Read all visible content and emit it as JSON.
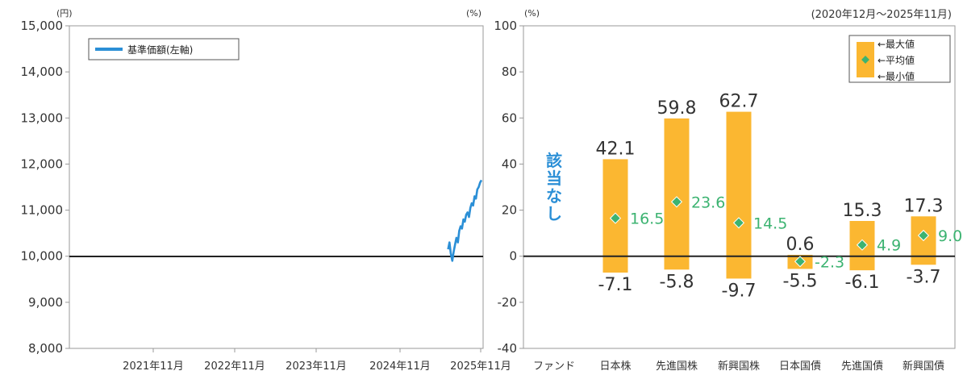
{
  "chart_data": [
    {
      "type": "line",
      "y_unit": "(円)",
      "y_ticks": [
        8000,
        9000,
        10000,
        11000,
        12000,
        13000,
        14000,
        15000
      ],
      "y_tick_labels": [
        "8,000",
        "9,000",
        "10,000",
        "11,000",
        "12,000",
        "13,000",
        "14,000",
        "15,000"
      ],
      "ylim": [
        8000,
        15000
      ],
      "x_tick_labels": [
        "2021年11月",
        "2022年11月",
        "2023年11月",
        "2024年11月",
        "2025年11月"
      ],
      "legend": "基準価額(左軸)",
      "legend_position": "top-left",
      "series_color": "#2b8fd6",
      "series": [
        {
          "values_note_x": "months from 2020-12 (index 0) to 2025-11 (index 59)",
          "x": [
            54.2,
            54.4,
            54.6,
            54.8,
            55.0,
            55.2,
            55.4,
            55.6,
            55.8,
            56.0,
            56.2,
            56.4,
            56.6,
            56.8,
            57.0,
            57.2,
            57.4,
            57.6,
            57.8,
            58.0,
            58.2,
            58.4,
            58.6,
            58.8,
            59.0
          ],
          "y": [
            10150,
            10300,
            10050,
            9900,
            10100,
            10250,
            10400,
            10300,
            10550,
            10650,
            10600,
            10800,
            10750,
            10900,
            10950,
            10850,
            11050,
            11150,
            11100,
            11300,
            11250,
            11450,
            11500,
            11600,
            11650
          ]
        }
      ]
    },
    {
      "type": "bar",
      "period": "(2020年12月～2025年11月)",
      "y_unit": "(%)",
      "y_ticks": [
        -40,
        -20,
        0,
        20,
        40,
        60,
        80,
        100
      ],
      "ylim": [
        -40,
        100
      ],
      "categories": [
        "ファンド",
        "日本株",
        "先進国株",
        "新興国株",
        "日本国債",
        "先進国債",
        "新興国債"
      ],
      "max": [
        null,
        42.1,
        59.8,
        62.7,
        0.6,
        15.3,
        17.3
      ],
      "avg": [
        null,
        16.5,
        23.6,
        14.5,
        -2.3,
        4.9,
        9.0
      ],
      "min": [
        null,
        -7.1,
        -5.8,
        -9.7,
        -5.5,
        -6.1,
        -3.7
      ],
      "max_labels": [
        "",
        "42.1",
        "59.8",
        "62.7",
        "0.6",
        "15.3",
        "17.3"
      ],
      "avg_labels": [
        "",
        "16.5",
        "23.6",
        "14.5",
        "-2.3",
        "4.9",
        "9.0"
      ],
      "min_labels": [
        "",
        "-7.1",
        "-5.8",
        "-9.7",
        "-5.5",
        "-6.1",
        "-3.7"
      ],
      "na_label": "該当なし",
      "legend": [
        "←最大値",
        "←平均値",
        "←最小値"
      ],
      "legend_position": "top-right",
      "bar_color": "#fbb731",
      "avg_color": "#3cb371"
    }
  ]
}
